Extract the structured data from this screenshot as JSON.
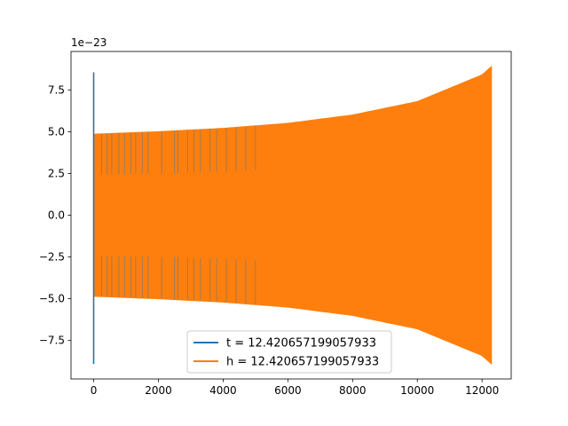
{
  "chart_data": {
    "type": "line",
    "title": "",
    "xlabel": "",
    "ylabel": "",
    "y_offset_label": "1e−23",
    "xlim": [
      -700,
      12900
    ],
    "ylim": [
      -9.8,
      9.8
    ],
    "x_ticks": [
      0,
      2000,
      4000,
      6000,
      8000,
      10000,
      12000
    ],
    "x_tick_labels": [
      "0",
      "2000",
      "4000",
      "6000",
      "8000",
      "10000",
      "12000"
    ],
    "y_ticks": [
      -7.5,
      -5.0,
      -2.5,
      0.0,
      2.5,
      5.0,
      7.5
    ],
    "y_tick_labels": [
      "−7.5",
      "−5.0",
      "−2.5",
      "0.0",
      "2.5",
      "5.0",
      "7.5"
    ],
    "grid": false,
    "legend_position": "lower-center",
    "series": [
      {
        "name": "t = 12.420657199057933",
        "color": "#1f77b4",
        "envelope_x": [
          0,
          2000,
          4000,
          6000,
          8000,
          10000,
          12000,
          12290
        ],
        "envelope_upper": [
          4.85,
          5.0,
          5.2,
          5.5,
          6.0,
          6.8,
          8.4,
          8.9
        ],
        "envelope_lower": [
          -4.85,
          -5.0,
          -5.2,
          -5.5,
          -6.0,
          -6.8,
          -8.4,
          -8.9
        ],
        "spike_x": 0,
        "spike_range": [
          -8.9,
          8.55
        ]
      },
      {
        "name": "h = 12.420657199057933",
        "color": "#ff7f0e",
        "envelope_x": [
          0,
          2000,
          4000,
          6000,
          8000,
          10000,
          12000,
          12290
        ],
        "envelope_upper": [
          4.85,
          5.0,
          5.2,
          5.5,
          6.0,
          6.8,
          8.4,
          8.9
        ],
        "envelope_lower": [
          -4.85,
          -5.0,
          -5.2,
          -5.5,
          -6.0,
          -6.8,
          -8.4,
          -8.9
        ]
      }
    ]
  }
}
